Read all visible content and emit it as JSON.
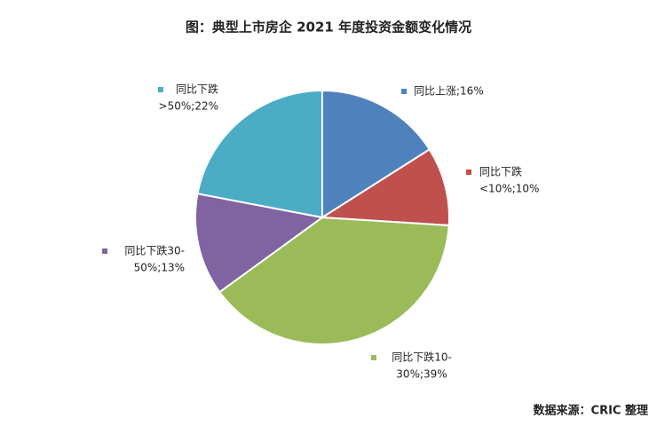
{
  "chart_data": {
    "type": "pie",
    "title": "图：典型上市房企 2021 年度投资金额变化情况",
    "source": "数据来源：CRIC 整理",
    "values": [
      16,
      10,
      39,
      13,
      22
    ],
    "value_labels": [
      [
        "同比上涨;16%"
      ],
      [
        "同比下跌",
        "<10%;10%"
      ],
      [
        "同比下跌10-",
        "30%;39%"
      ],
      [
        "同比下跌30-",
        "50%;13%"
      ],
      [
        "同比下跌",
        ">50%;22%"
      ]
    ],
    "colors": [
      "#4f81bd",
      "#c0504d",
      "#9bbb59",
      "#8064a2",
      "#4bacc6"
    ]
  }
}
